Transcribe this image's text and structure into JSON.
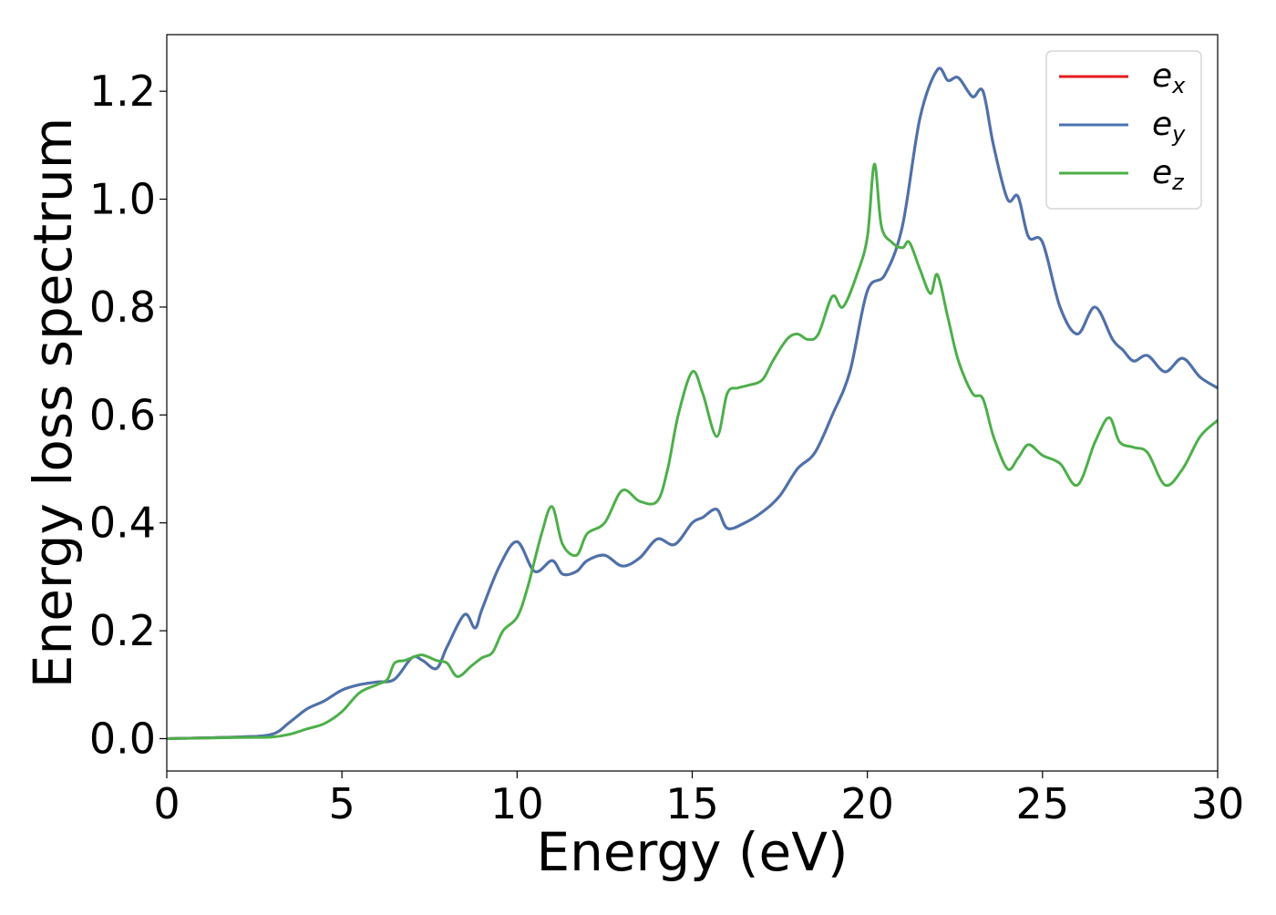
{
  "chart_data": {
    "type": "line",
    "title": "",
    "xlabel": "Energy (eV)",
    "ylabel": "Energy loss spectrum",
    "xlim": [
      0,
      30
    ],
    "ylim": [
      -0.06,
      1.305
    ],
    "xticks": [
      0,
      5,
      10,
      15,
      20,
      25,
      30
    ],
    "xtick_labels": [
      "0",
      "5",
      "10",
      "15",
      "20",
      "25",
      "30"
    ],
    "yticks": [
      0.0,
      0.2,
      0.4,
      0.6,
      0.8,
      1.0,
      1.2
    ],
    "ytick_labels": [
      "0.0",
      "0.2",
      "0.4",
      "0.6",
      "0.8",
      "1.0",
      "1.2"
    ],
    "grid": false,
    "legend_position": "top-right",
    "series": [
      {
        "name": "e_x",
        "legend_base": "e",
        "legend_sub": "x",
        "color": "#e41a1c",
        "x": [
          0,
          2,
          3,
          3.5,
          4,
          4.5,
          5,
          5.5,
          6,
          6.5,
          7,
          7.3,
          7.7,
          8,
          8.5,
          8.8,
          9,
          9.5,
          10,
          10.5,
          11,
          11.3,
          11.7,
          12,
          12.5,
          13,
          13.5,
          14,
          14.5,
          15,
          15.3,
          15.7,
          16,
          16.5,
          17,
          17.5,
          18,
          18.5,
          19,
          19.5,
          20,
          20.5,
          21,
          21.5,
          22,
          22.3,
          22.6,
          23,
          23.3,
          23.6,
          24,
          24.3,
          24.6,
          25,
          25.5,
          26,
          26.5,
          27,
          27.3,
          27.6,
          28,
          28.5,
          29,
          29.5,
          30
        ],
        "y": [
          0,
          0.003,
          0.008,
          0.03,
          0.055,
          0.07,
          0.09,
          0.1,
          0.105,
          0.11,
          0.15,
          0.145,
          0.13,
          0.17,
          0.23,
          0.205,
          0.24,
          0.32,
          0.365,
          0.31,
          0.33,
          0.305,
          0.31,
          0.33,
          0.34,
          0.32,
          0.335,
          0.37,
          0.36,
          0.4,
          0.41,
          0.425,
          0.39,
          0.4,
          0.42,
          0.45,
          0.5,
          0.53,
          0.6,
          0.68,
          0.83,
          0.86,
          0.95,
          1.15,
          1.24,
          1.22,
          1.225,
          1.19,
          1.2,
          1.1,
          1.0,
          1.005,
          0.93,
          0.92,
          0.8,
          0.75,
          0.8,
          0.74,
          0.72,
          0.7,
          0.71,
          0.68,
          0.705,
          0.67,
          0.65
        ]
      },
      {
        "name": "e_y",
        "legend_base": "e",
        "legend_sub": "y",
        "color": "#4874ae",
        "x": [
          0,
          2,
          3,
          3.5,
          4,
          4.5,
          5,
          5.5,
          6,
          6.5,
          7,
          7.3,
          7.7,
          8,
          8.5,
          8.8,
          9,
          9.5,
          10,
          10.5,
          11,
          11.3,
          11.7,
          12,
          12.5,
          13,
          13.5,
          14,
          14.5,
          15,
          15.3,
          15.7,
          16,
          16.5,
          17,
          17.5,
          18,
          18.5,
          19,
          19.5,
          20,
          20.5,
          21,
          21.5,
          22,
          22.3,
          22.6,
          23,
          23.3,
          23.6,
          24,
          24.3,
          24.6,
          25,
          25.5,
          26,
          26.5,
          27,
          27.3,
          27.6,
          28,
          28.5,
          29,
          29.5,
          30
        ],
        "y": [
          0,
          0.003,
          0.008,
          0.03,
          0.055,
          0.07,
          0.09,
          0.1,
          0.105,
          0.11,
          0.15,
          0.145,
          0.13,
          0.17,
          0.23,
          0.205,
          0.24,
          0.32,
          0.365,
          0.31,
          0.33,
          0.305,
          0.31,
          0.33,
          0.34,
          0.32,
          0.335,
          0.37,
          0.36,
          0.4,
          0.41,
          0.425,
          0.39,
          0.4,
          0.42,
          0.45,
          0.5,
          0.53,
          0.6,
          0.68,
          0.83,
          0.86,
          0.95,
          1.15,
          1.24,
          1.22,
          1.225,
          1.19,
          1.2,
          1.1,
          1.0,
          1.005,
          0.93,
          0.92,
          0.8,
          0.75,
          0.8,
          0.74,
          0.72,
          0.7,
          0.71,
          0.68,
          0.705,
          0.67,
          0.65
        ]
      },
      {
        "name": "e_z",
        "legend_base": "e",
        "legend_sub": "z",
        "color": "#4daf4a",
        "x": [
          0,
          2,
          3,
          3.5,
          4,
          4.5,
          5,
          5.5,
          6,
          6.3,
          6.5,
          6.8,
          7,
          7.3,
          7.7,
          8,
          8.3,
          8.7,
          9,
          9.3,
          9.6,
          10,
          10.3,
          10.7,
          11,
          11.3,
          11.7,
          12,
          12.5,
          13,
          13.5,
          14,
          14.3,
          14.6,
          15,
          15.3,
          15.7,
          16,
          16.3,
          16.6,
          17,
          17.3,
          17.7,
          18,
          18.3,
          18.6,
          19,
          19.3,
          19.7,
          20,
          20.2,
          20.4,
          20.7,
          21,
          21.2,
          21.5,
          21.8,
          22,
          22.3,
          22.6,
          23,
          23.3,
          23.6,
          24,
          24.3,
          24.6,
          25,
          25.5,
          26,
          26.5,
          26.9,
          27.2,
          27.6,
          28,
          28.5,
          29,
          29.5,
          30
        ],
        "y": [
          0,
          0.002,
          0.003,
          0.008,
          0.018,
          0.028,
          0.05,
          0.085,
          0.1,
          0.11,
          0.14,
          0.145,
          0.15,
          0.155,
          0.145,
          0.14,
          0.115,
          0.135,
          0.15,
          0.16,
          0.2,
          0.225,
          0.28,
          0.38,
          0.43,
          0.36,
          0.34,
          0.38,
          0.4,
          0.46,
          0.44,
          0.44,
          0.5,
          0.6,
          0.68,
          0.64,
          0.56,
          0.64,
          0.65,
          0.655,
          0.665,
          0.7,
          0.74,
          0.75,
          0.74,
          0.75,
          0.82,
          0.8,
          0.86,
          0.93,
          1.065,
          0.95,
          0.92,
          0.91,
          0.92,
          0.87,
          0.825,
          0.86,
          0.78,
          0.7,
          0.64,
          0.63,
          0.56,
          0.5,
          0.52,
          0.545,
          0.525,
          0.51,
          0.47,
          0.55,
          0.595,
          0.55,
          0.54,
          0.53,
          0.47,
          0.5,
          0.56,
          0.59
        ]
      }
    ]
  }
}
